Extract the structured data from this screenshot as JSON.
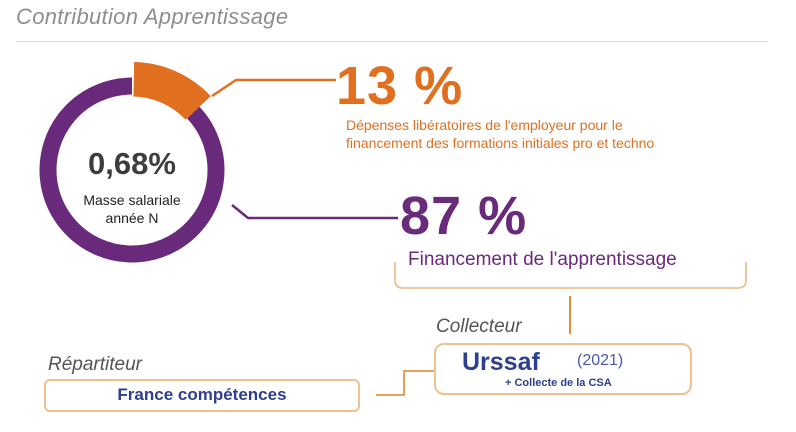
{
  "title": "Contribution Apprentissage",
  "center": {
    "value": "0,68%",
    "line1": "Masse salariale",
    "line2": "année N"
  },
  "orange": {
    "percent": "13 %",
    "desc_line1": "Dépenses libératoires de l'employeur pour le",
    "desc_line2": "financement des formations initiales pro et techno",
    "color": "#e07020"
  },
  "purple": {
    "percent": "87 %",
    "desc": "Financement de l'apprentissage",
    "color": "#6a2a7c"
  },
  "collecteur": {
    "label": "Collecteur",
    "name": "Urssaf",
    "year": "(2021)",
    "sub": "+ Collecte de la CSA"
  },
  "repartiteur": {
    "label": "Répartiteur",
    "name": "France compétences"
  },
  "chart_data": {
    "type": "pie",
    "categories": [
      "Dépenses libératoires de l'employeur",
      "Financement de l'apprentissage"
    ],
    "values": [
      13,
      87
    ]
  }
}
